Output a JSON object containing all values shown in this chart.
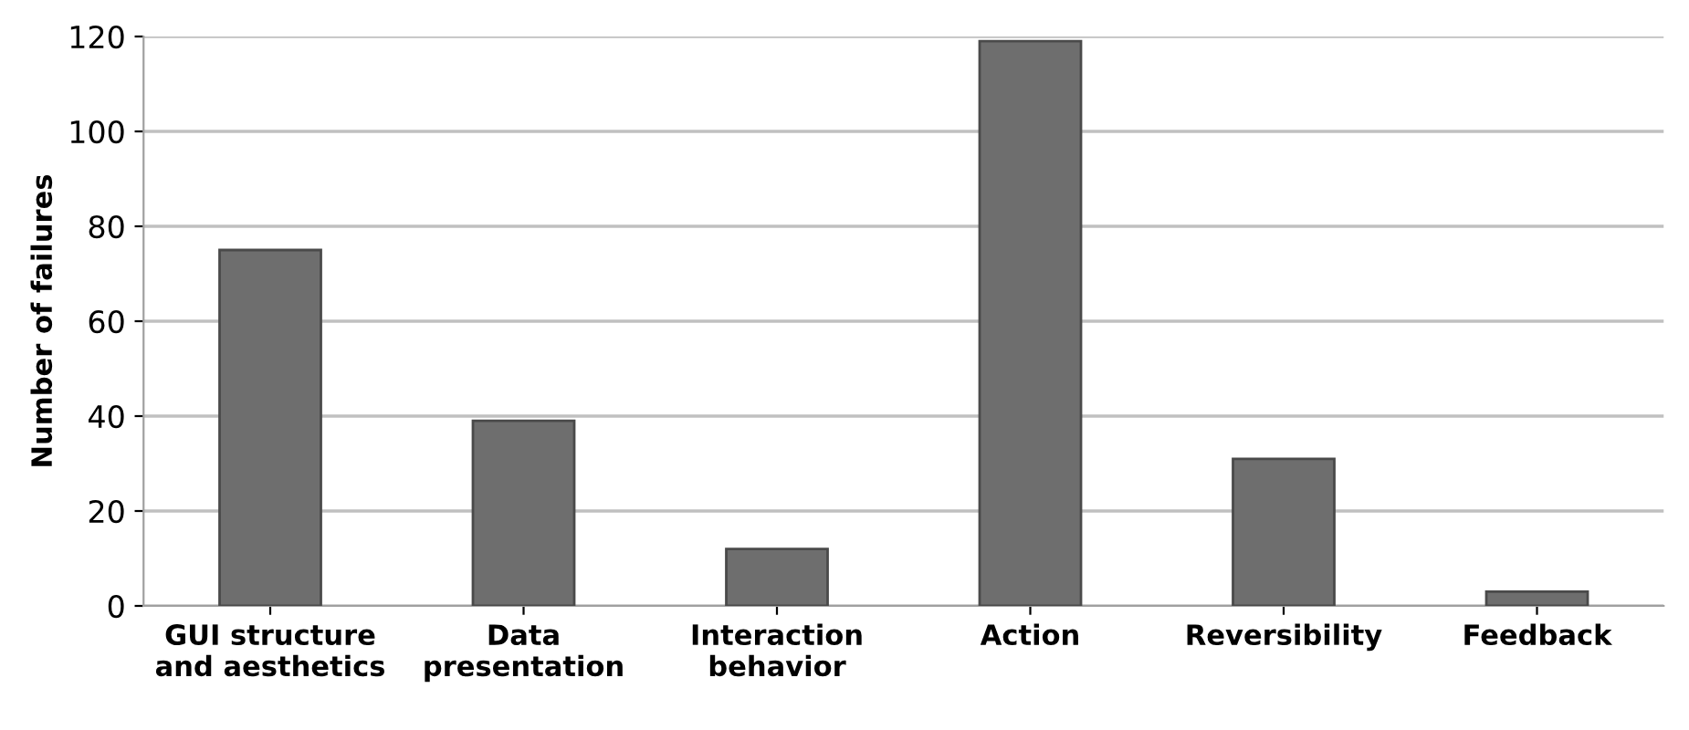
{
  "chart_data": {
    "type": "bar",
    "ylabel": "Number of failures",
    "categories": [
      "GUI structure\nand aesthetics",
      "Data\npresentation",
      "Interaction\nbehavior",
      "Action",
      "Reversibility",
      "Feedback"
    ],
    "values": [
      75,
      39,
      12,
      119,
      31,
      3
    ],
    "color": "#6e6e6e",
    "ylim": [
      0,
      120
    ],
    "yticks": [
      0,
      20,
      40,
      60,
      80,
      100,
      120
    ],
    "grid": "y"
  }
}
